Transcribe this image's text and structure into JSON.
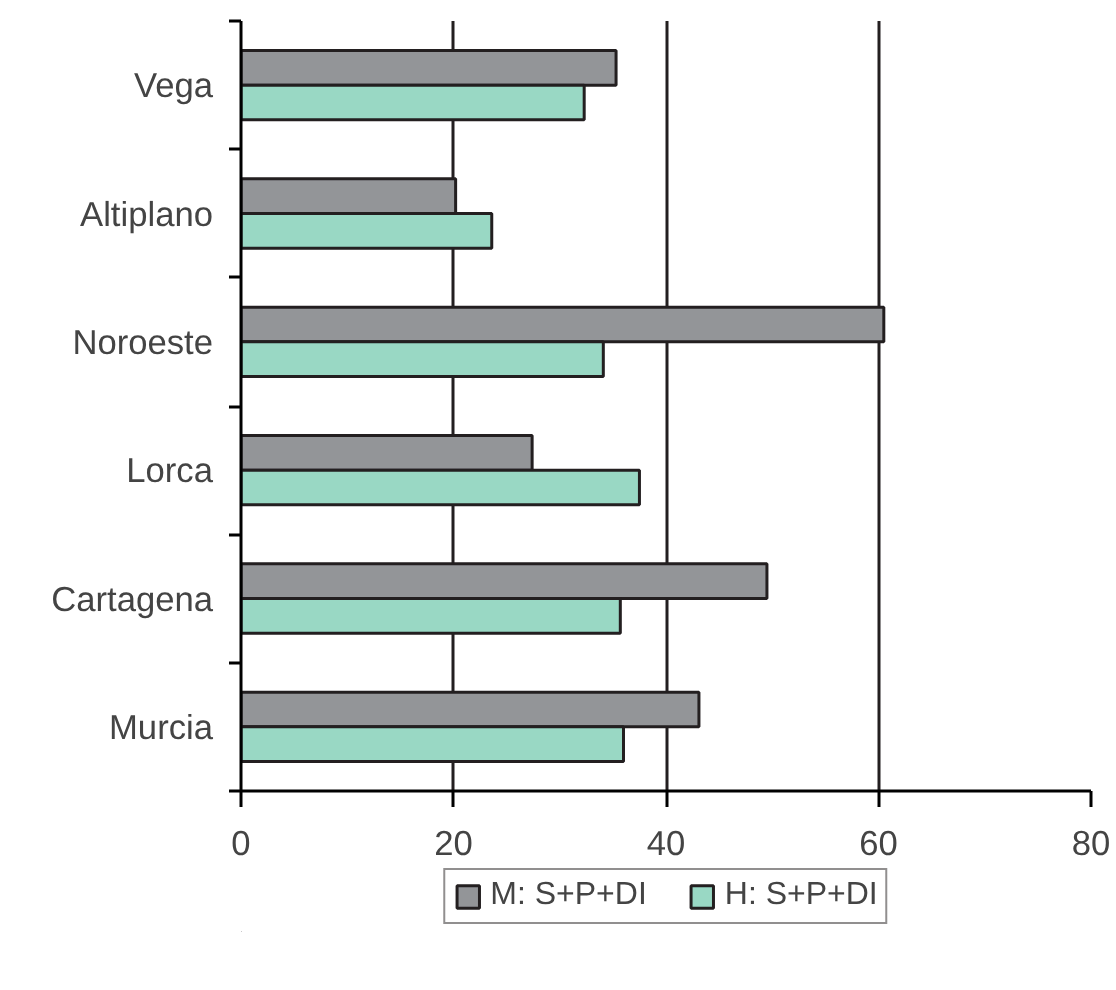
{
  "chart_data": {
    "type": "bar",
    "orientation": "horizontal",
    "categories": [
      "Vega",
      "Altiplano",
      "Noroeste",
      "Lorca",
      "Cartagena",
      "Murcia"
    ],
    "series": [
      {
        "name": "M: S+P+DI",
        "color": "#939598",
        "values": [
          35.3,
          20.2,
          60.5,
          27.4,
          49.5,
          43.1
        ]
      },
      {
        "name": "H: S+P+DI",
        "color": "#99d8c4",
        "values": [
          32.3,
          23.6,
          34.1,
          37.5,
          35.7,
          36.0
        ]
      }
    ],
    "xlim": [
      0,
      80
    ],
    "xticks": [
      0,
      20,
      40,
      60,
      80
    ],
    "grid": "x",
    "legend": "bottom"
  }
}
